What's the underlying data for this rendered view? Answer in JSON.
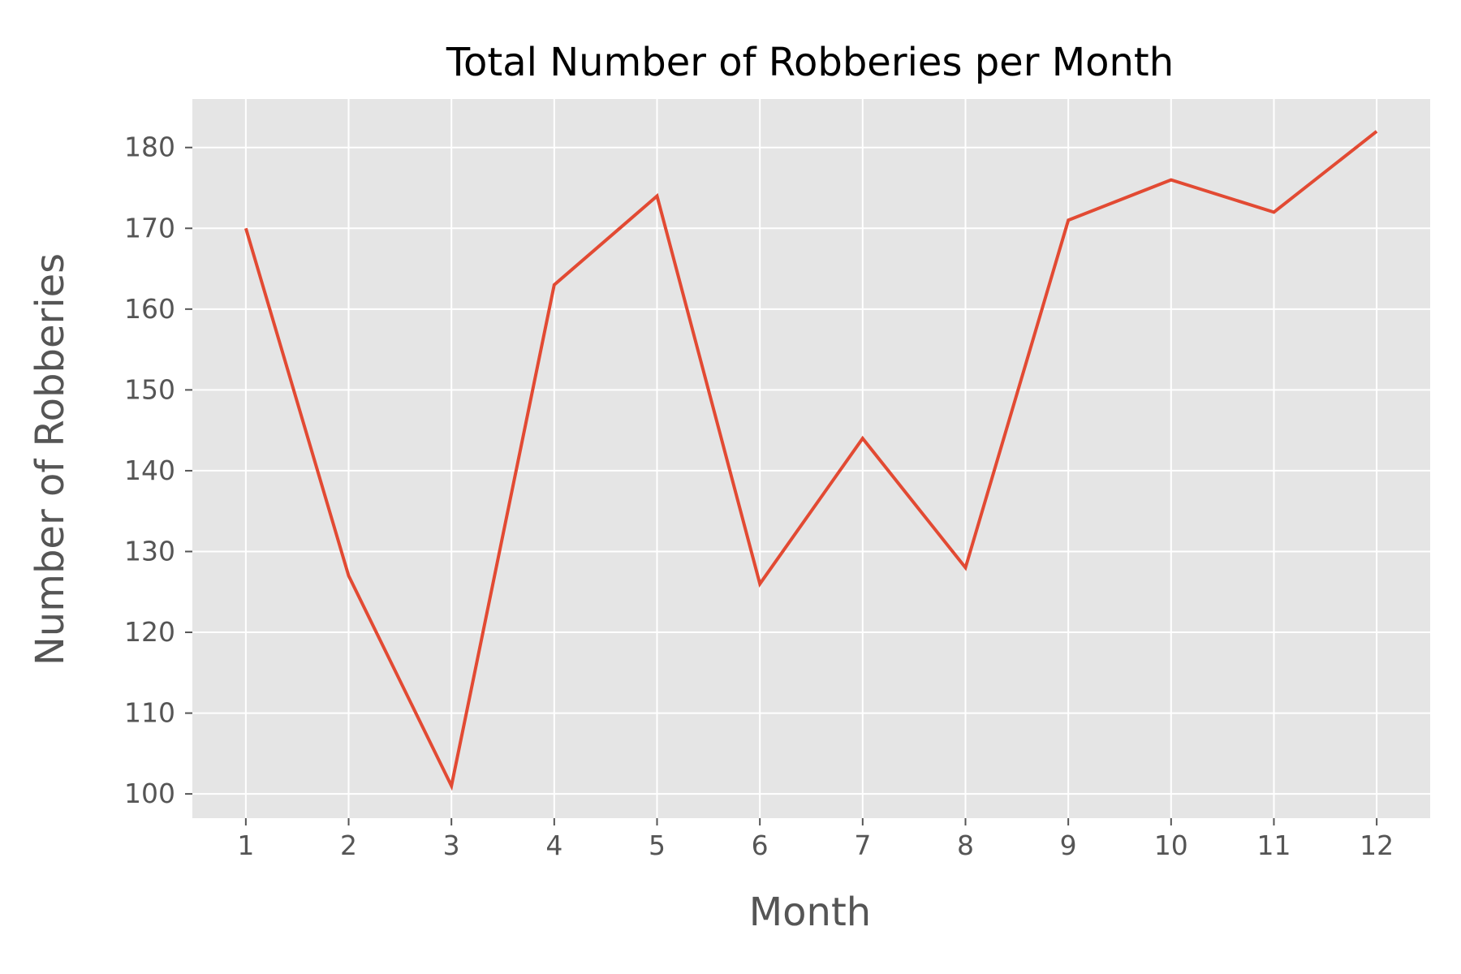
{
  "chart_data": {
    "type": "line",
    "title": "Total Number of Robberies per Month",
    "xlabel": "Month",
    "ylabel": "Number of Robberies",
    "x": [
      1,
      2,
      3,
      4,
      5,
      6,
      7,
      8,
      9,
      10,
      11,
      12
    ],
    "x_tick_labels": [
      "1",
      "2",
      "3",
      "4",
      "5",
      "6",
      "7",
      "8",
      "9",
      "10",
      "11",
      "12"
    ],
    "y_ticks": [
      100,
      110,
      120,
      130,
      140,
      150,
      160,
      170,
      180
    ],
    "y_tick_labels": [
      "100",
      "110",
      "120",
      "130",
      "140",
      "150",
      "160",
      "170",
      "180"
    ],
    "xlim": [
      0.48,
      12.52
    ],
    "ylim": [
      97,
      186
    ],
    "grid": true,
    "series": [
      {
        "name": "Robberies",
        "values": [
          170,
          127,
          101,
          163,
          174,
          126,
          144,
          128,
          171,
          176,
          172,
          182
        ],
        "color": "#E24A33"
      }
    ],
    "colors": {
      "plot_background": "#E5E5E5",
      "grid": "#FFFFFF",
      "tick": "#555555",
      "title": "#000000"
    }
  }
}
